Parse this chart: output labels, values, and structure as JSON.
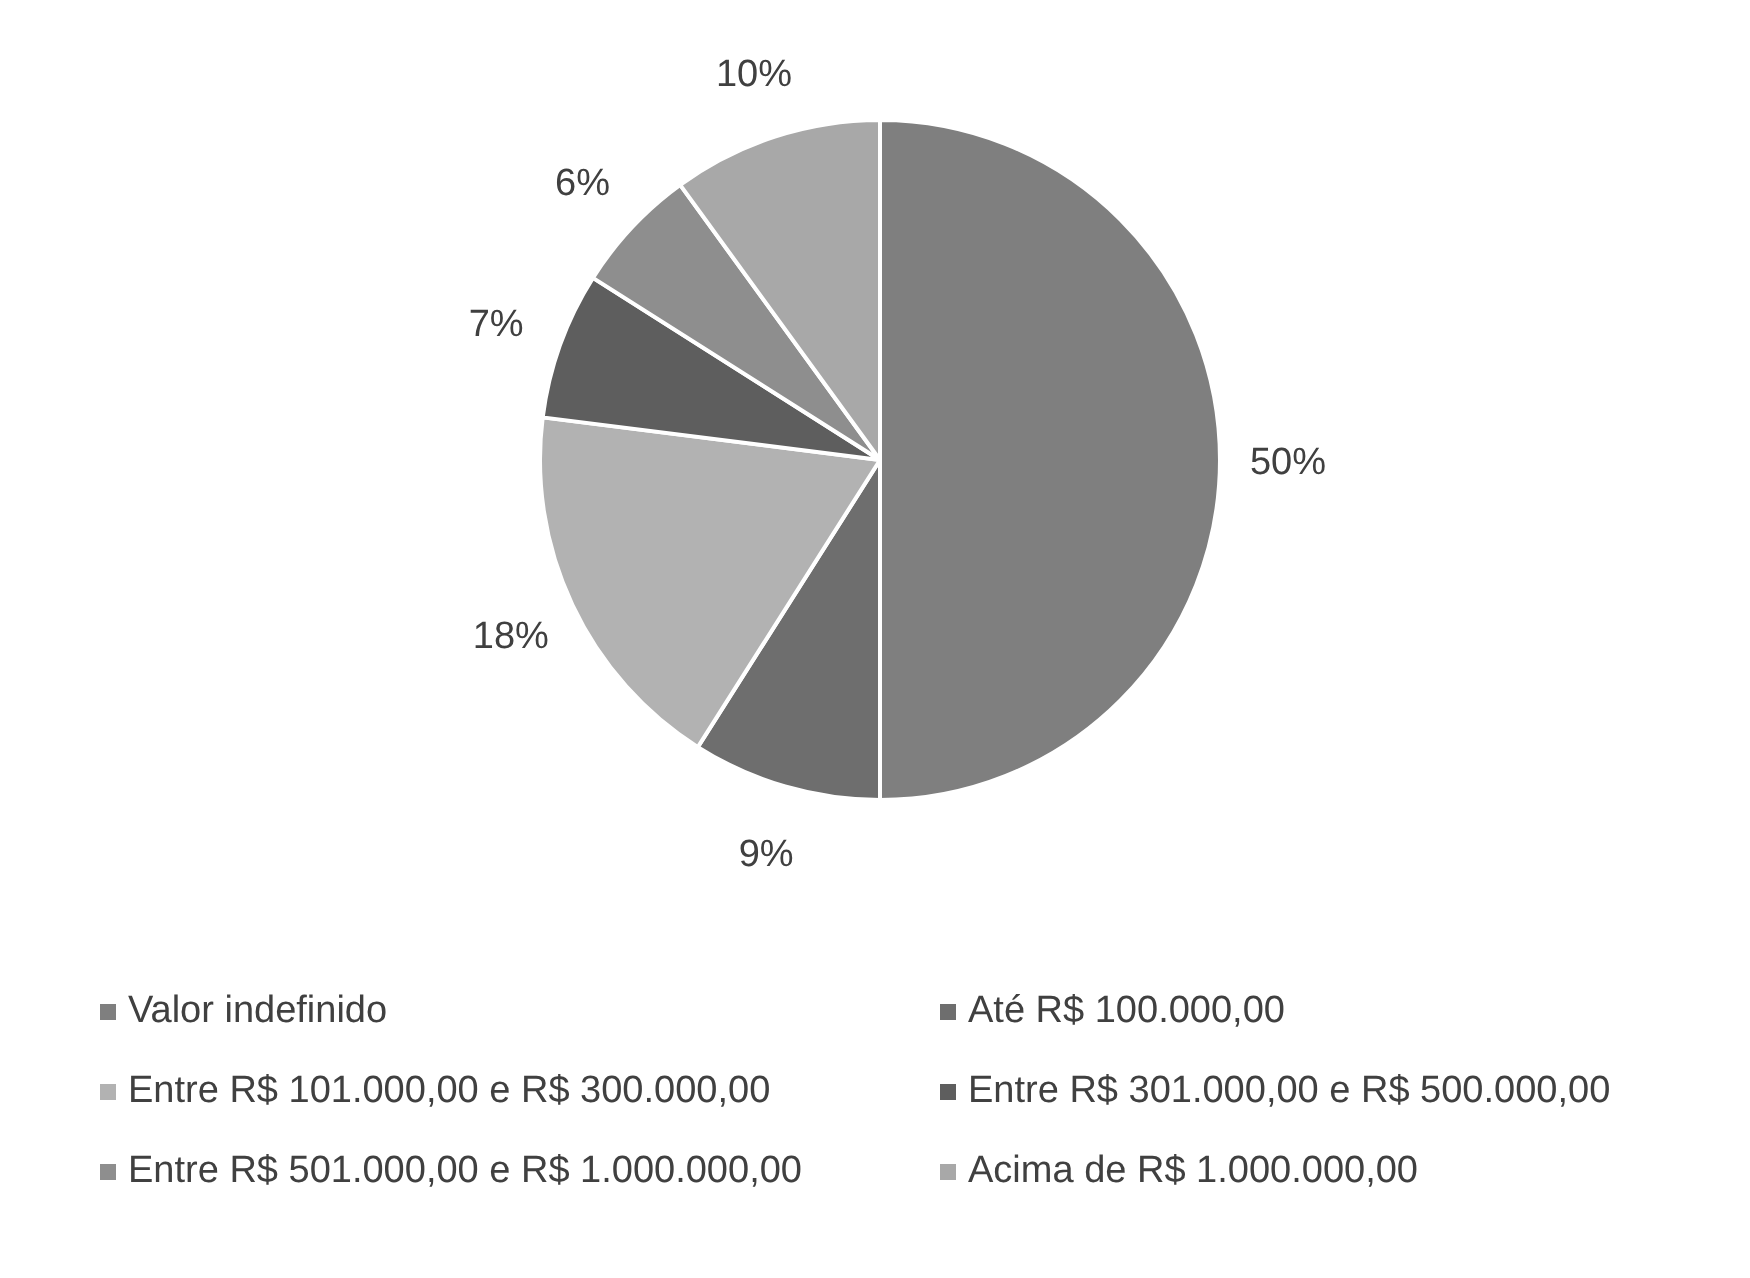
{
  "chart_data": {
    "type": "pie",
    "categories": [
      "Valor indefinido",
      "Até R$ 100.000,00",
      "Entre R$ 101.000,00 e R$ 300.000,00",
      "Entre R$ 301.000,00 e R$ 500.000,00",
      "Entre R$ 501.000,00 e R$ 1.000.000,00",
      "Acima de R$ 1.000.000,00"
    ],
    "values": [
      50,
      9,
      18,
      7,
      6,
      10
    ],
    "colors": [
      "#7f7f7f",
      "#6e6e6e",
      "#b2b2b2",
      "#5e5e5e",
      "#8e8e8e",
      "#a8a8a8"
    ],
    "value_labels": [
      "50%",
      "9%",
      "18%",
      "7%",
      "6%",
      "10%"
    ],
    "legend": "bottom"
  }
}
